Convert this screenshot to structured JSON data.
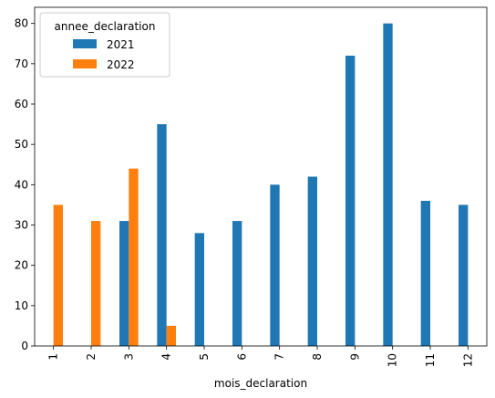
{
  "chart_data": {
    "type": "bar",
    "categories": [
      "1",
      "2",
      "3",
      "4",
      "5",
      "6",
      "7",
      "8",
      "9",
      "10",
      "11",
      "12"
    ],
    "series": [
      {
        "name": "2021",
        "color": "#1f77b4",
        "values": [
          null,
          null,
          31,
          55,
          28,
          31,
          40,
          42,
          72,
          80,
          36,
          35
        ]
      },
      {
        "name": "2022",
        "color": "#ff7f0e",
        "values": [
          35,
          31,
          44,
          5,
          null,
          null,
          null,
          null,
          null,
          null,
          null,
          null
        ]
      }
    ],
    "xlabel": "mois_declaration",
    "ylabel": "",
    "ylim": [
      0,
      84
    ],
    "yticks": [
      0,
      10,
      20,
      30,
      40,
      50,
      60,
      70,
      80
    ],
    "legend": {
      "title": "annee_declaration",
      "placement": "top-left"
    },
    "grid": false
  }
}
